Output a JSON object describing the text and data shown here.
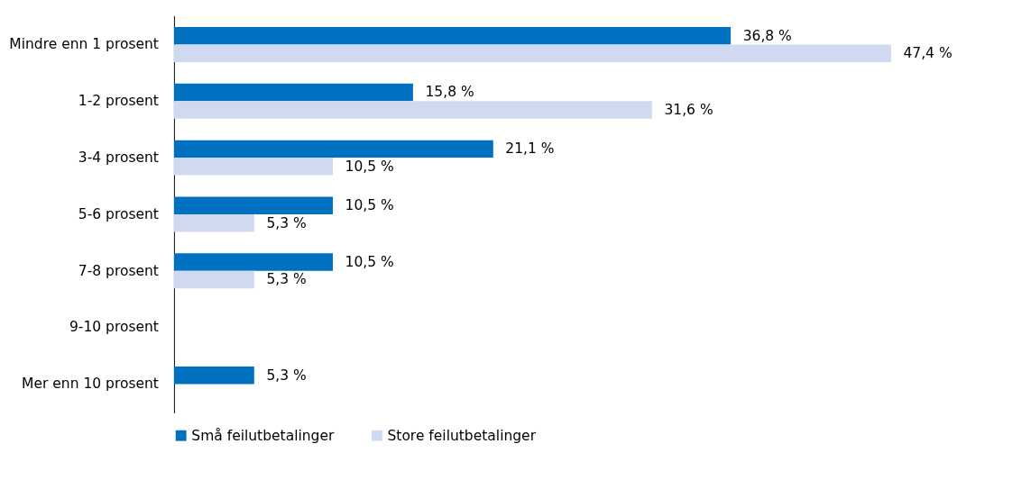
{
  "chart_data": {
    "type": "bar",
    "orientation": "horizontal",
    "categories": [
      "Mindre enn 1 prosent",
      "1-2 prosent",
      "3-4 prosent",
      "5-6 prosent",
      "7-8 prosent",
      "9-10 prosent",
      "Mer enn 10 prosent"
    ],
    "series": [
      {
        "name": "Små feilutbetalinger",
        "color": "#0070c0",
        "values": [
          36.8,
          15.8,
          21.1,
          10.5,
          10.5,
          null,
          5.3
        ],
        "value_labels": [
          "36,8 %",
          "15,8 %",
          "21,1 %",
          "10,5 %",
          "10,5 %",
          null,
          "5,3 %"
        ]
      },
      {
        "name": "Store feilutbetalinger",
        "color": "#cfd9ef",
        "values": [
          47.4,
          31.6,
          10.5,
          5.3,
          5.3,
          null,
          null
        ],
        "value_labels": [
          "47,4 %",
          "31,6 %",
          "10,5 %",
          "5,3 %",
          "5,3 %",
          null,
          null
        ]
      }
    ],
    "legend": "bottom"
  }
}
